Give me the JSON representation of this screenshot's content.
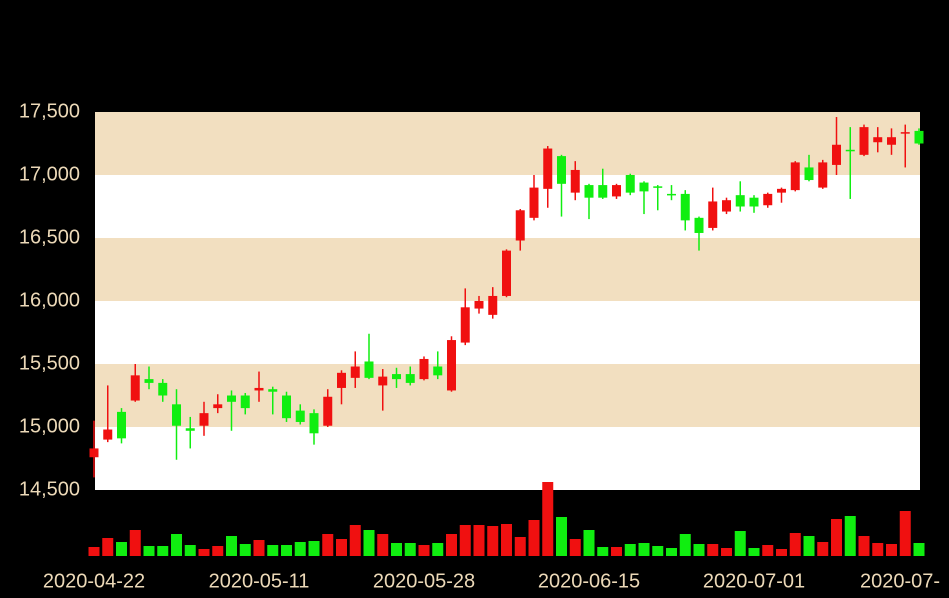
{
  "chart_data": {
    "type": "candlestick",
    "categories": [
      "2020-04-22",
      null,
      null,
      null,
      null,
      null,
      null,
      null,
      null,
      null,
      null,
      null,
      "2020-05-11",
      null,
      null,
      null,
      null,
      null,
      null,
      null,
      null,
      null,
      null,
      null,
      "2020-05-28",
      null,
      null,
      null,
      null,
      null,
      null,
      null,
      null,
      null,
      null,
      null,
      "2020-06-15",
      null,
      null,
      null,
      null,
      null,
      null,
      null,
      null,
      null,
      null,
      null,
      "2020-07-01",
      null,
      null,
      null,
      null,
      null,
      null,
      null,
      null,
      null,
      null,
      null,
      "2020-07-"
    ],
    "open": [
      14760,
      14900,
      15120,
      15210,
      15380,
      15350,
      15180,
      14990,
      15010,
      15150,
      15250,
      15250,
      15290,
      15300,
      15250,
      15130,
      15110,
      15010,
      15310,
      15390,
      15520,
      15330,
      15420,
      15420,
      15380,
      15480,
      15290,
      15670,
      15940,
      15890,
      16040,
      16480,
      16660,
      16890,
      17150,
      16860,
      16920,
      16920,
      16830,
      17000,
      16940,
      16910,
      16850,
      16850,
      16660,
      16580,
      16710,
      16840,
      16820,
      16760,
      16860,
      16880,
      17060,
      16900,
      17080,
      17200,
      17160,
      17260,
      17240,
      17330,
      17350
    ],
    "high": [
      15050,
      15330,
      15150,
      15500,
      15480,
      15380,
      15300,
      15080,
      15200,
      15260,
      15290,
      15270,
      15440,
      15320,
      15280,
      15180,
      15140,
      15300,
      15450,
      15600,
      15740,
      15460,
      15470,
      15480,
      15560,
      15600,
      15720,
      16100,
      16040,
      16110,
      16410,
      16730,
      17000,
      17230,
      17160,
      17110,
      16930,
      17050,
      16930,
      17010,
      16950,
      16920,
      16920,
      16880,
      16670,
      16900,
      16820,
      16950,
      16840,
      16860,
      16900,
      17110,
      17160,
      17120,
      17460,
      17380,
      17400,
      17380,
      17370,
      17400,
      17370
    ],
    "low": [
      14600,
      14880,
      14870,
      15200,
      15300,
      15200,
      14740,
      14830,
      14930,
      15110,
      14970,
      15100,
      15200,
      15100,
      15040,
      15020,
      14860,
      15000,
      15180,
      15310,
      15380,
      15130,
      15310,
      15330,
      15370,
      15380,
      15280,
      15650,
      15900,
      15860,
      16030,
      16400,
      16640,
      16740,
      16670,
      16800,
      16650,
      16810,
      16810,
      16840,
      16690,
      16720,
      16800,
      16560,
      16400,
      16560,
      16690,
      16710,
      16700,
      16740,
      16780,
      16870,
      16950,
      16890,
      17000,
      16810,
      17150,
      17180,
      17160,
      17060,
      17240
    ],
    "close": [
      14830,
      14980,
      14910,
      15410,
      15350,
      15250,
      15010,
      14970,
      15110,
      15180,
      15200,
      15150,
      15310,
      15280,
      15070,
      15040,
      14950,
      15240,
      15430,
      15480,
      15390,
      15400,
      15380,
      15350,
      15540,
      15410,
      15690,
      15950,
      16000,
      16040,
      16400,
      16720,
      16900,
      17210,
      16930,
      17040,
      16820,
      16820,
      16920,
      16860,
      16870,
      16900,
      16840,
      16640,
      16540,
      16790,
      16800,
      16750,
      16750,
      16850,
      16890,
      17100,
      16960,
      17100,
      17240,
      17190,
      17380,
      17300,
      17300,
      17340,
      17250
    ],
    "volume": [
      9,
      18,
      14,
      26,
      10,
      10,
      22,
      11,
      7,
      10,
      20,
      12,
      16,
      11,
      11,
      14,
      15,
      22,
      17,
      31,
      26,
      22,
      13,
      13,
      11,
      13,
      22,
      31,
      31,
      30,
      32,
      19,
      36,
      74,
      39,
      17,
      26,
      9,
      9,
      12,
      13,
      10,
      8,
      22,
      12,
      12,
      8,
      25,
      8,
      11,
      7,
      23,
      20,
      14,
      37,
      40,
      20,
      13,
      12,
      45,
      13
    ],
    "ylim": [
      14500,
      17500
    ],
    "yticks": [
      {
        "value": 14500,
        "label": "14,500"
      },
      {
        "value": 15000,
        "label": "15,000"
      },
      {
        "value": 15500,
        "label": "15,500"
      },
      {
        "value": 16000,
        "label": "16,000"
      },
      {
        "value": 16500,
        "label": "16,500"
      },
      {
        "value": 17000,
        "label": "17,000"
      },
      {
        "value": 17500,
        "label": "17,500"
      }
    ],
    "volume_ylim": [
      0,
      74
    ],
    "up_color": "#f01010",
    "down_color": "#10ee10",
    "band_color": "#f2dfc0"
  }
}
